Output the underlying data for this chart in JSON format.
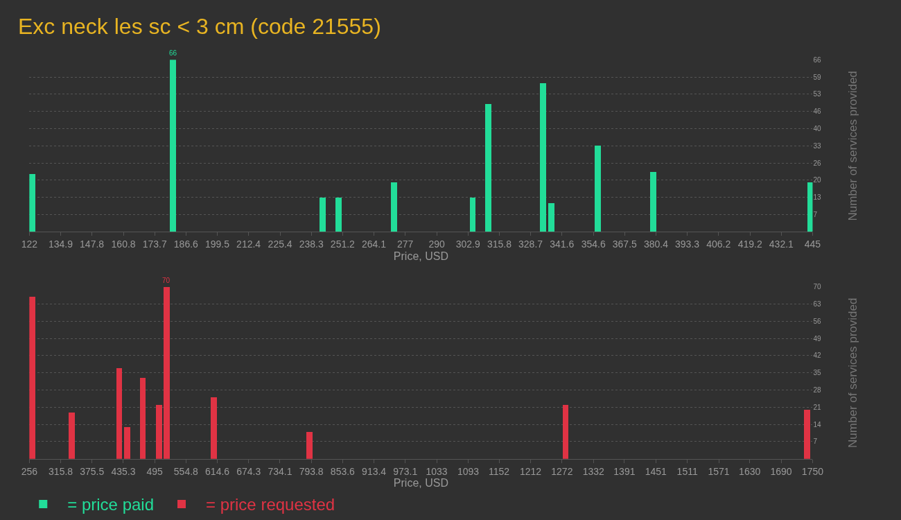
{
  "chart_data": [
    {
      "type": "bar",
      "title": "Exc neck les sc < 3 cm (code 21555)",
      "xlabel": "Price, USD",
      "ylabel": "Number of services provided",
      "series": [
        {
          "name": "= price paid",
          "color": "#22dd99",
          "x": [
            123.3,
            181.4,
            243.1,
            249.5,
            272.4,
            304.9,
            311.3,
            333.9,
            337.3,
            356.6,
            379.3,
            444.2
          ],
          "values": [
            22,
            66,
            13,
            13,
            19,
            13,
            49,
            57,
            11,
            33,
            23,
            19
          ]
        }
      ],
      "xlim": [
        122,
        445
      ],
      "xticks": [
        122,
        134.9,
        147.8,
        160.8,
        173.7,
        186.6,
        199.5,
        212.4,
        225.4,
        238.3,
        251.2,
        264.1,
        277,
        290,
        302.9,
        315.8,
        328.7,
        341.6,
        354.6,
        367.5,
        380.4,
        393.3,
        406.2,
        419.2,
        432.1,
        445
      ],
      "ylim": [
        0,
        66
      ],
      "yticks": [
        {
          "value": 6.6,
          "label": "7"
        },
        {
          "value": 13.2,
          "label": "13"
        },
        {
          "value": 19.8,
          "label": "20"
        },
        {
          "value": 26.4,
          "label": "26"
        },
        33,
        {
          "value": 39.6,
          "label": "40"
        },
        {
          "value": 46.2,
          "label": "46"
        },
        {
          "value": 52.8,
          "label": "53"
        },
        {
          "value": 59.4,
          "label": "59"
        },
        66
      ],
      "annotations": [
        {
          "text": "66",
          "x": 181.4,
          "y": 66
        }
      ],
      "grid": "y",
      "legend": "bottom left"
    },
    {
      "type": "bar",
      "xlabel": "Price, USD",
      "ylabel": "Number of services provided",
      "series": [
        {
          "name": "= price requested",
          "color": "#e03344",
          "x": [
            261.8,
            337.5,
            427.8,
            442.8,
            472.7,
            503.5,
            517.9,
            608.6,
            790.2,
            1279.3,
            1739.8
          ],
          "values": [
            66,
            19,
            37,
            13,
            33,
            22,
            70,
            25,
            11,
            22,
            20
          ]
        }
      ],
      "xlim": [
        256,
        1750
      ],
      "xticks": [
        256,
        315.8,
        375.5,
        435.3,
        495,
        554.8,
        614.6,
        674.3,
        734.1,
        793.8,
        853.6,
        913.4,
        973.1,
        1033,
        1093,
        1152,
        1212,
        1272,
        1332,
        1391,
        1451,
        1511,
        1571,
        1630,
        1690,
        1750
      ],
      "ylim": [
        0,
        70
      ],
      "yticks": [
        7,
        14,
        21,
        28,
        35,
        42,
        49,
        56,
        63,
        70
      ],
      "annotations": [
        {
          "text": "70",
          "x": 517.9,
          "y": 70
        }
      ],
      "grid": "y",
      "legend": "bottom left"
    }
  ]
}
